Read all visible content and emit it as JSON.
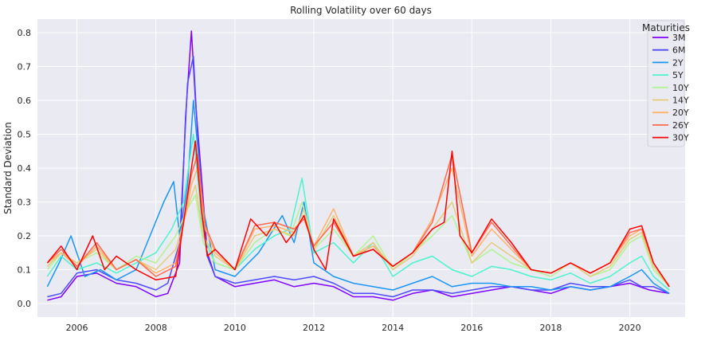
{
  "chart_data": {
    "type": "line",
    "title": "Rolling Volatility over 60 days",
    "xlabel": "",
    "ylabel": "Standard Deviation",
    "xlim": [
      2005.0,
      2021.4
    ],
    "ylim": [
      -0.04,
      0.84
    ],
    "xticks": [
      2006,
      2008,
      2010,
      2012,
      2014,
      2016,
      2018,
      2020
    ],
    "xtick_labels": [
      "2006",
      "2008",
      "2010",
      "2012",
      "2014",
      "2016",
      "2018",
      "2020"
    ],
    "yticks": [
      0.0,
      0.1,
      0.2,
      0.3,
      0.4,
      0.5,
      0.6,
      0.7,
      0.8
    ],
    "ytick_labels": [
      "0.0",
      "0.1",
      "0.2",
      "0.3",
      "0.4",
      "0.5",
      "0.6",
      "0.7",
      "0.8"
    ],
    "grid": true,
    "legend": {
      "title": "Maturities",
      "placement": "top-right"
    },
    "series": [
      {
        "name": "3M",
        "color": "#8000ff",
        "x": [
          2005.25,
          2005.6,
          2006.0,
          2006.5,
          2007.0,
          2007.5,
          2008.0,
          2008.3,
          2008.6,
          2008.75,
          2008.9,
          2009.0,
          2009.15,
          2009.3,
          2009.5,
          2010.0,
          2010.5,
          2011.0,
          2011.5,
          2012.0,
          2012.5,
          2013.0,
          2013.5,
          2014.0,
          2014.5,
          2015.0,
          2015.5,
          2016.0,
          2016.5,
          2017.0,
          2017.5,
          2018.0,
          2018.5,
          2019.0,
          2019.5,
          2020.0,
          2020.25,
          2020.5,
          2021.0
        ],
        "y": [
          0.01,
          0.02,
          0.08,
          0.09,
          0.06,
          0.05,
          0.02,
          0.03,
          0.12,
          0.55,
          0.805,
          0.6,
          0.38,
          0.15,
          0.08,
          0.05,
          0.06,
          0.07,
          0.05,
          0.06,
          0.05,
          0.02,
          0.02,
          0.01,
          0.03,
          0.04,
          0.02,
          0.03,
          0.04,
          0.05,
          0.04,
          0.03,
          0.05,
          0.04,
          0.05,
          0.06,
          0.05,
          0.04,
          0.03
        ]
      },
      {
        "name": "6M",
        "color": "#4f4afb",
        "x": [
          2005.25,
          2005.6,
          2006.0,
          2006.5,
          2007.0,
          2007.5,
          2008.0,
          2008.3,
          2008.6,
          2008.8,
          2008.95,
          2009.1,
          2009.3,
          2009.5,
          2010.0,
          2010.5,
          2011.0,
          2011.5,
          2012.0,
          2012.5,
          2013.0,
          2013.5,
          2014.0,
          2014.5,
          2015.0,
          2015.5,
          2016.0,
          2016.5,
          2017.0,
          2017.5,
          2018.0,
          2018.5,
          2019.0,
          2019.5,
          2020.0,
          2020.3,
          2020.6,
          2021.0
        ],
        "y": [
          0.02,
          0.03,
          0.09,
          0.1,
          0.07,
          0.06,
          0.04,
          0.06,
          0.18,
          0.65,
          0.73,
          0.4,
          0.14,
          0.08,
          0.06,
          0.07,
          0.08,
          0.07,
          0.08,
          0.06,
          0.03,
          0.03,
          0.02,
          0.04,
          0.04,
          0.03,
          0.04,
          0.05,
          0.05,
          0.04,
          0.04,
          0.06,
          0.05,
          0.05,
          0.07,
          0.05,
          0.05,
          0.03
        ]
      },
      {
        "name": "2Y",
        "color": "#1996f3",
        "x": [
          2005.25,
          2005.55,
          2005.85,
          2006.2,
          2006.6,
          2007.0,
          2007.5,
          2007.85,
          2008.2,
          2008.45,
          2008.6,
          2008.8,
          2008.95,
          2009.2,
          2009.5,
          2010.0,
          2010.6,
          2011.2,
          2011.5,
          2011.75,
          2012.0,
          2012.5,
          2013.0,
          2013.5,
          2014.0,
          2014.5,
          2015.0,
          2015.5,
          2016.0,
          2016.5,
          2017.0,
          2017.5,
          2018.0,
          2018.5,
          2019.0,
          2019.5,
          2020.0,
          2020.3,
          2020.6,
          2021.0
        ],
        "y": [
          0.05,
          0.12,
          0.2,
          0.08,
          0.1,
          0.07,
          0.1,
          0.2,
          0.3,
          0.36,
          0.2,
          0.35,
          0.6,
          0.28,
          0.1,
          0.08,
          0.15,
          0.26,
          0.18,
          0.3,
          0.12,
          0.08,
          0.06,
          0.05,
          0.04,
          0.06,
          0.08,
          0.05,
          0.06,
          0.06,
          0.05,
          0.05,
          0.04,
          0.05,
          0.04,
          0.05,
          0.08,
          0.1,
          0.06,
          0.03
        ]
      },
      {
        "name": "5Y",
        "color": "#4df3ce",
        "x": [
          2005.25,
          2005.6,
          2006.0,
          2006.5,
          2007.0,
          2007.5,
          2008.0,
          2008.4,
          2008.7,
          2008.95,
          2009.2,
          2009.5,
          2010.0,
          2010.5,
          2011.0,
          2011.4,
          2011.7,
          2012.0,
          2012.5,
          2013.0,
          2013.5,
          2014.0,
          2014.5,
          2015.0,
          2015.5,
          2016.0,
          2016.5,
          2017.0,
          2017.5,
          2018.0,
          2018.5,
          2019.0,
          2019.5,
          2020.0,
          2020.3,
          2020.6,
          2021.0
        ],
        "y": [
          0.08,
          0.14,
          0.1,
          0.12,
          0.09,
          0.12,
          0.15,
          0.22,
          0.3,
          0.5,
          0.2,
          0.12,
          0.1,
          0.16,
          0.2,
          0.22,
          0.37,
          0.15,
          0.18,
          0.12,
          0.18,
          0.08,
          0.12,
          0.14,
          0.1,
          0.08,
          0.11,
          0.1,
          0.08,
          0.07,
          0.09,
          0.06,
          0.08,
          0.12,
          0.14,
          0.08,
          0.04
        ]
      },
      {
        "name": "10Y",
        "color": "#b2f396",
        "x": [
          2005.25,
          2005.6,
          2006.0,
          2006.5,
          2007.0,
          2007.5,
          2008.0,
          2008.5,
          2008.8,
          2009.0,
          2009.2,
          2009.5,
          2010.0,
          2010.5,
          2011.0,
          2011.4,
          2011.7,
          2012.0,
          2012.5,
          2013.0,
          2013.5,
          2014.0,
          2014.5,
          2015.0,
          2015.5,
          2016.0,
          2016.5,
          2017.0,
          2017.5,
          2018.0,
          2018.5,
          2019.0,
          2019.5,
          2020.0,
          2020.3,
          2020.6,
          2021.0
        ],
        "y": [
          0.1,
          0.15,
          0.12,
          0.15,
          0.1,
          0.14,
          0.12,
          0.2,
          0.28,
          0.32,
          0.18,
          0.12,
          0.1,
          0.18,
          0.22,
          0.2,
          0.3,
          0.16,
          0.22,
          0.14,
          0.2,
          0.1,
          0.15,
          0.2,
          0.26,
          0.12,
          0.16,
          0.12,
          0.1,
          0.08,
          0.12,
          0.08,
          0.1,
          0.18,
          0.2,
          0.1,
          0.05
        ]
      },
      {
        "name": "14Y",
        "color": "#e6cb7a",
        "x": [
          2005.25,
          2005.6,
          2006.0,
          2006.5,
          2007.0,
          2007.5,
          2008.0,
          2008.5,
          2008.85,
          2009.0,
          2009.2,
          2009.5,
          2010.0,
          2010.5,
          2011.0,
          2011.5,
          2011.75,
          2012.0,
          2012.5,
          2013.0,
          2013.5,
          2014.0,
          2014.5,
          2015.0,
          2015.5,
          2016.0,
          2016.5,
          2017.0,
          2017.5,
          2018.0,
          2018.5,
          2019.0,
          2019.5,
          2020.0,
          2020.3,
          2020.6,
          2021.0
        ],
        "y": [
          0.11,
          0.15,
          0.12,
          0.16,
          0.1,
          0.13,
          0.1,
          0.16,
          0.3,
          0.35,
          0.2,
          0.14,
          0.1,
          0.2,
          0.22,
          0.2,
          0.28,
          0.16,
          0.26,
          0.14,
          0.18,
          0.1,
          0.14,
          0.22,
          0.3,
          0.12,
          0.18,
          0.14,
          0.1,
          0.09,
          0.12,
          0.08,
          0.11,
          0.19,
          0.21,
          0.11,
          0.05
        ]
      },
      {
        "name": "20Y",
        "color": "#ffb26a",
        "x": [
          2005.25,
          2005.6,
          2006.0,
          2006.5,
          2007.0,
          2007.5,
          2008.0,
          2008.5,
          2008.9,
          2009.05,
          2009.25,
          2009.5,
          2010.0,
          2010.5,
          2011.0,
          2011.5,
          2011.75,
          2012.0,
          2012.5,
          2013.0,
          2013.5,
          2014.0,
          2014.5,
          2015.0,
          2015.5,
          2016.0,
          2016.5,
          2017.0,
          2017.5,
          2018.0,
          2018.5,
          2019.0,
          2019.5,
          2020.0,
          2020.3,
          2020.6,
          2021.0
        ],
        "y": [
          0.12,
          0.15,
          0.11,
          0.17,
          0.1,
          0.13,
          0.09,
          0.12,
          0.35,
          0.4,
          0.22,
          0.15,
          0.1,
          0.22,
          0.23,
          0.21,
          0.26,
          0.17,
          0.28,
          0.14,
          0.17,
          0.11,
          0.15,
          0.25,
          0.4,
          0.14,
          0.22,
          0.16,
          0.1,
          0.09,
          0.12,
          0.09,
          0.12,
          0.2,
          0.22,
          0.12,
          0.05
        ]
      },
      {
        "name": "26Y",
        "color": "#ff6a4e",
        "x": [
          2005.25,
          2005.6,
          2006.0,
          2006.5,
          2007.0,
          2007.5,
          2008.0,
          2008.5,
          2008.9,
          2009.05,
          2009.25,
          2009.5,
          2010.0,
          2010.5,
          2011.0,
          2011.5,
          2011.75,
          2012.0,
          2012.5,
          2013.0,
          2013.5,
          2014.0,
          2014.5,
          2015.0,
          2015.5,
          2016.0,
          2016.5,
          2017.0,
          2017.5,
          2018.0,
          2018.5,
          2019.0,
          2019.5,
          2020.0,
          2020.3,
          2020.6,
          2021.0
        ],
        "y": [
          0.12,
          0.16,
          0.11,
          0.18,
          0.1,
          0.13,
          0.08,
          0.11,
          0.38,
          0.44,
          0.23,
          0.16,
          0.1,
          0.23,
          0.24,
          0.22,
          0.25,
          0.17,
          0.24,
          0.14,
          0.16,
          0.11,
          0.15,
          0.24,
          0.44,
          0.15,
          0.24,
          0.17,
          0.1,
          0.09,
          0.12,
          0.09,
          0.12,
          0.21,
          0.22,
          0.12,
          0.05
        ]
      },
      {
        "name": "30Y",
        "color": "#ff0000",
        "x": [
          2005.25,
          2005.6,
          2006.0,
          2006.4,
          2006.7,
          2007.0,
          2007.5,
          2008.0,
          2008.5,
          2008.9,
          2009.0,
          2009.15,
          2009.3,
          2009.5,
          2010.0,
          2010.4,
          2010.8,
          2011.0,
          2011.3,
          2011.5,
          2011.75,
          2012.0,
          2012.3,
          2012.5,
          2013.0,
          2013.5,
          2014.0,
          2014.5,
          2015.0,
          2015.3,
          2015.5,
          2015.7,
          2016.0,
          2016.5,
          2017.0,
          2017.5,
          2018.0,
          2018.5,
          2019.0,
          2019.5,
          2020.0,
          2020.3,
          2020.6,
          2021.0
        ],
        "y": [
          0.12,
          0.17,
          0.1,
          0.2,
          0.1,
          0.14,
          0.1,
          0.07,
          0.08,
          0.4,
          0.48,
          0.28,
          0.14,
          0.16,
          0.1,
          0.25,
          0.2,
          0.24,
          0.18,
          0.21,
          0.26,
          0.16,
          0.1,
          0.25,
          0.14,
          0.16,
          0.11,
          0.15,
          0.22,
          0.24,
          0.45,
          0.2,
          0.15,
          0.25,
          0.18,
          0.1,
          0.09,
          0.12,
          0.09,
          0.12,
          0.22,
          0.23,
          0.12,
          0.05
        ]
      }
    ]
  }
}
